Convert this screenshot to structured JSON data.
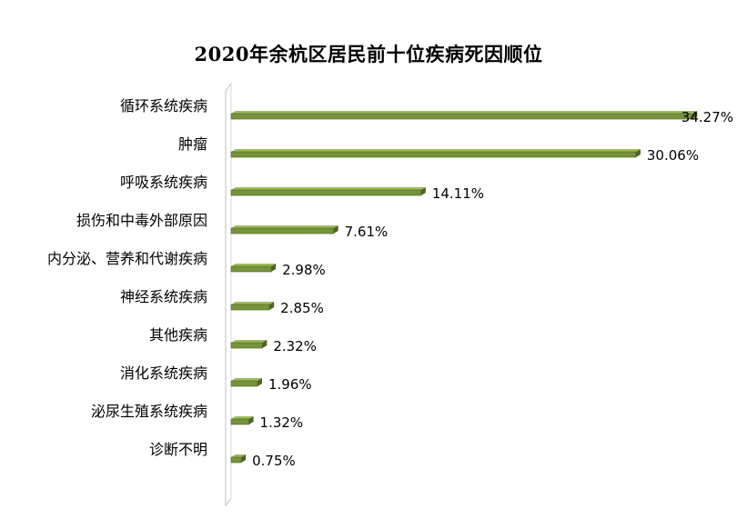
{
  "chart_data": {
    "type": "bar",
    "orientation": "horizontal",
    "title": "2020年余杭区居民前十位疾病死因顺位",
    "categories": [
      "循环系统疾病",
      "肿瘤",
      "呼吸系统疾病",
      "损伤和中毒外部原因",
      "内分泌、营养和代谢疾病",
      "神经系统疾病",
      "其他疾病",
      "消化系统疾病",
      "泌尿生殖系统疾病",
      "诊断不明"
    ],
    "values": [
      34.27,
      30.06,
      14.11,
      7.61,
      2.98,
      2.85,
      2.32,
      1.96,
      1.32,
      0.75
    ],
    "value_labels": [
      "34.27%",
      "30.06%",
      "14.11%",
      "7.61%",
      "2.98%",
      "2.85%",
      "2.32%",
      "1.96%",
      "1.32%",
      "0.75%"
    ],
    "xlim": [
      0,
      35
    ],
    "xlabel": "",
    "ylabel": "",
    "grid": false,
    "legend": "none",
    "colors": {
      "bar_fill": "#77933c",
      "bar_top": "#9bbb59",
      "bar_edge": "#4f6228",
      "axis_wall": "#d9d9d9"
    }
  }
}
